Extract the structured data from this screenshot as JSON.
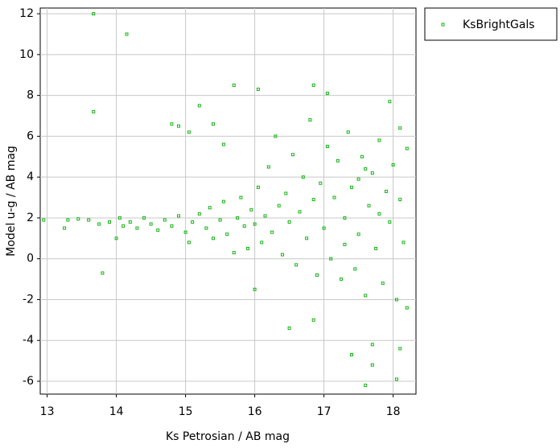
{
  "chart_data": {
    "type": "scatter",
    "x_label": "Ks Petrosian / AB mag",
    "y_label": "Model u-g / AB mag",
    "xlim": [
      12.9,
      18.33
    ],
    "ylim": [
      -6.63,
      12.28
    ],
    "xticks": [
      13,
      14,
      15,
      16,
      17,
      18
    ],
    "yticks": [
      -6,
      -4,
      -2,
      0,
      2,
      4,
      6,
      8,
      10,
      12
    ],
    "grid": true,
    "legend": "outside-right",
    "series": [
      {
        "name": "KsBrightGals",
        "color": "#12b512",
        "x": [
          12.95,
          13.3,
          13.25,
          13.45,
          13.6,
          13.75,
          13.9,
          14.0,
          14.05,
          14.1,
          14.2,
          14.3,
          14.4,
          14.5,
          14.6,
          14.7,
          14.8,
          14.9,
          15.0,
          15.05,
          15.1,
          15.2,
          15.3,
          15.35,
          15.4,
          15.5,
          15.55,
          15.6,
          15.7,
          15.75,
          15.8,
          15.85,
          15.9,
          15.95,
          16.0,
          16.05,
          16.1,
          16.15,
          16.2,
          16.25,
          16.3,
          16.35,
          16.4,
          16.45,
          16.5,
          16.55,
          16.6,
          16.65,
          16.7,
          16.75,
          16.8,
          16.85,
          16.9,
          16.95,
          17.0,
          17.05,
          17.1,
          17.15,
          17.2,
          17.25,
          17.3,
          17.35,
          17.4,
          17.45,
          17.5,
          17.55,
          17.6,
          17.65,
          17.7,
          17.75,
          17.8,
          17.85,
          17.9,
          17.95,
          18.0,
          18.05,
          18.1,
          18.15,
          18.2,
          18.2,
          17.5,
          17.6,
          17.3,
          17.8,
          18.1,
          13.67,
          14.15,
          13.67,
          13.8,
          14.8,
          14.9,
          15.05,
          15.2,
          15.4,
          15.55,
          15.7,
          16.05,
          16.0,
          16.5,
          16.85,
          17.4,
          17.6,
          17.7,
          17.7,
          18.05,
          18.1,
          17.05,
          16.85,
          17.95
        ],
        "values": [
          1.9,
          1.9,
          1.5,
          1.95,
          1.9,
          1.7,
          1.8,
          1.0,
          2.0,
          1.6,
          1.8,
          1.5,
          2.0,
          1.7,
          1.4,
          1.9,
          1.6,
          2.1,
          1.3,
          0.8,
          1.8,
          2.2,
          1.5,
          2.5,
          1.0,
          1.9,
          2.8,
          1.2,
          0.3,
          2.0,
          3.0,
          1.6,
          0.5,
          2.4,
          1.7,
          3.5,
          0.8,
          2.1,
          4.5,
          1.3,
          6.0,
          2.6,
          0.2,
          3.2,
          1.8,
          5.1,
          -0.3,
          2.3,
          4.0,
          1.0,
          6.8,
          2.9,
          -0.8,
          3.7,
          1.5,
          5.5,
          0.0,
          3.0,
          4.8,
          -1.0,
          2.0,
          6.2,
          3.5,
          -0.5,
          1.2,
          5.0,
          -1.8,
          2.6,
          4.2,
          0.5,
          5.8,
          -1.2,
          3.3,
          1.8,
          4.6,
          -2.0,
          2.9,
          0.8,
          5.4,
          -2.4,
          3.9,
          4.4,
          0.7,
          2.2,
          6.4,
          12.0,
          11.0,
          7.2,
          -0.7,
          6.6,
          6.5,
          6.2,
          7.5,
          6.6,
          5.6,
          8.5,
          8.3,
          -1.5,
          -3.4,
          -3.0,
          -4.7,
          -6.2,
          -5.2,
          -4.2,
          -5.9,
          -4.4,
          8.1,
          8.5,
          7.7
        ]
      }
    ]
  }
}
